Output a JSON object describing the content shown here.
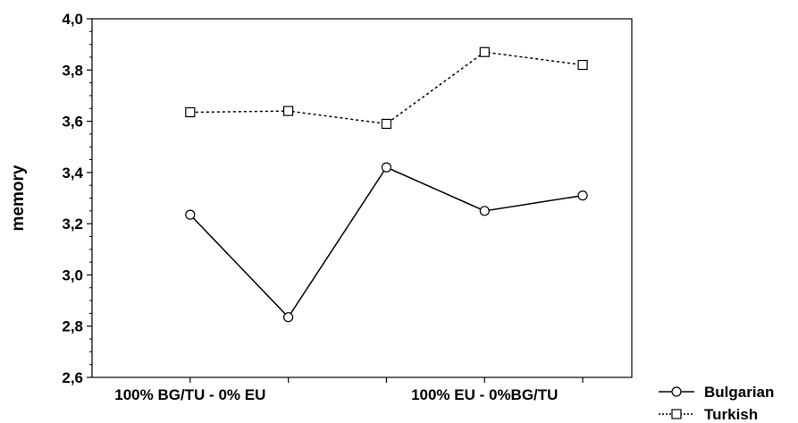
{
  "chart_data": {
    "type": "line",
    "x": [
      1,
      2,
      3,
      4,
      5
    ],
    "x_tick_labels": [
      {
        "x": 1,
        "label": "100% BG/TU - 0% EU"
      },
      {
        "x": 4,
        "label": "100% EU - 0%BG/TU"
      }
    ],
    "ylabel": "memory",
    "ylim": [
      2.6,
      4.0
    ],
    "yticks": [
      "2,6",
      "2,8",
      "3,0",
      "3,2",
      "3,4",
      "3,6",
      "3,8",
      "4,0"
    ],
    "grid": false,
    "legend_position": "bottom-right",
    "series": [
      {
        "name": "Bulgarian",
        "marker": "circle",
        "line": "solid",
        "color": "#000000",
        "values": [
          3.235,
          2.835,
          3.42,
          3.25,
          3.31
        ]
      },
      {
        "name": "Turkish",
        "marker": "square",
        "line": "dotted",
        "color": "#000000",
        "values": [
          3.635,
          3.64,
          3.59,
          3.87,
          3.82
        ]
      }
    ]
  }
}
